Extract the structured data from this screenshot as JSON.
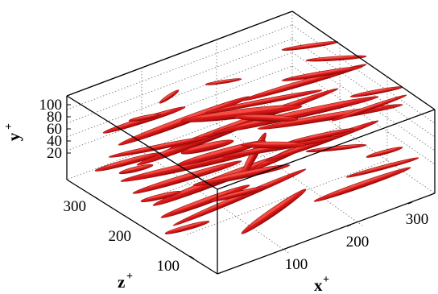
{
  "figure": {
    "y_axis": {
      "label": "y",
      "label_sup": "+",
      "ticks": [
        "100",
        "80",
        "60",
        "40",
        "20"
      ]
    },
    "z_axis": {
      "label": "z",
      "label_sup": "+",
      "ticks": [
        "300",
        "200",
        "100"
      ]
    },
    "x_axis": {
      "label": "x",
      "label_sup": "+",
      "ticks": [
        "100",
        "200",
        "300"
      ]
    },
    "colors": {
      "structure": "#d01a1a",
      "structure_dark": "#8e0a0a",
      "structure_light": "#ff6a5a",
      "box_line": "#000000",
      "grid_line": "#6e6e6e"
    },
    "grid": true
  }
}
